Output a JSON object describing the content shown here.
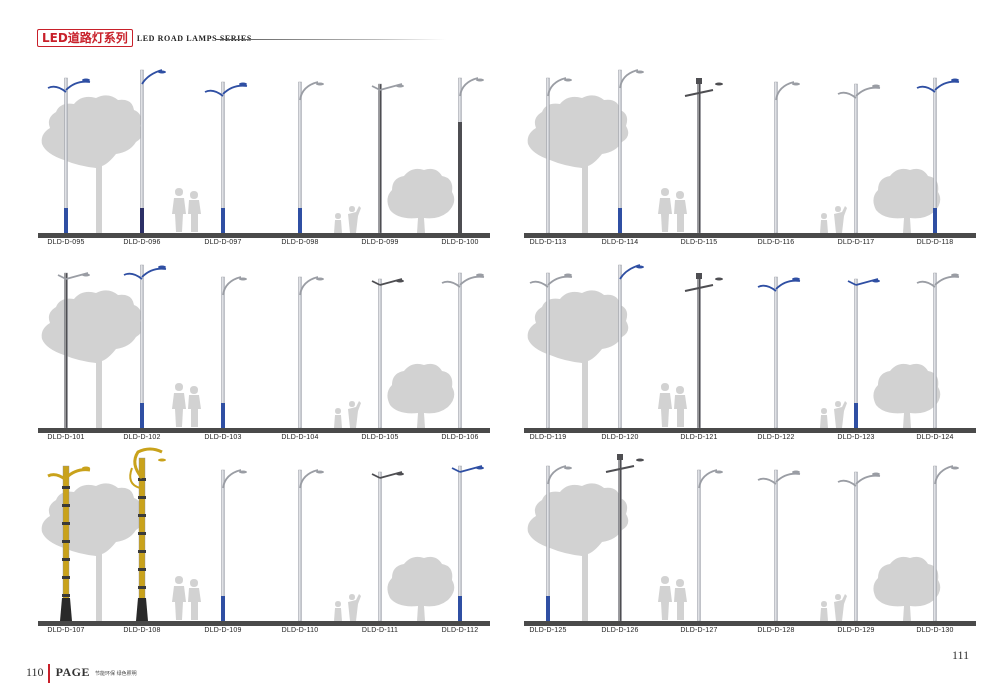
{
  "header": {
    "brand": "LED道路灯系列",
    "series": "LED ROAD LAMPS SERIES"
  },
  "footer": {
    "page_left": "110",
    "page_word": "PAGE",
    "tagline": "节能环保 绿色照明",
    "page_right": "111"
  },
  "colors": {
    "brand_red": "#c8202a",
    "pole_silver": "#c9ccd2",
    "pole_blue": "#2f4fa3",
    "pole_dark": "#4e4e52",
    "pole_gold": "#c9a21b",
    "background_silhouette": "#d2d2d2",
    "ground": "#4a4a4a"
  },
  "panels": [
    {
      "lamps": [
        {
          "label": "DLD-D-095",
          "style": "blue-base",
          "arm": "double-blue"
        },
        {
          "label": "DLD-D-096",
          "style": "dark-base",
          "arm": "blue-hook"
        },
        {
          "label": "DLD-D-097",
          "style": "blue-base",
          "arm": "double-blue"
        },
        {
          "label": "DLD-D-098",
          "style": "blue-base",
          "arm": "silver-curve"
        },
        {
          "label": "DLD-D-099",
          "style": "dark-full",
          "arm": "silver-flat"
        },
        {
          "label": "DLD-D-100",
          "style": "dark-upper",
          "arm": "silver-curve"
        }
      ]
    },
    {
      "lamps": [
        {
          "label": "DLD-D-113",
          "style": "silver",
          "arm": "silver-curve"
        },
        {
          "label": "DLD-D-114",
          "style": "blue-base",
          "arm": "silver-curve"
        },
        {
          "label": "DLD-D-115",
          "style": "dark-full",
          "arm": "dark-cross"
        },
        {
          "label": "DLD-D-116",
          "style": "silver",
          "arm": "silver-curve"
        },
        {
          "label": "DLD-D-117",
          "style": "silver",
          "arm": "double-silver"
        },
        {
          "label": "DLD-D-118",
          "style": "blue-base",
          "arm": "double-blue"
        }
      ]
    },
    {
      "lamps": [
        {
          "label": "DLD-D-101",
          "style": "dark-full",
          "arm": "silver-flat"
        },
        {
          "label": "DLD-D-102",
          "style": "blue-base",
          "arm": "double-blue"
        },
        {
          "label": "DLD-D-103",
          "style": "blue-base",
          "arm": "silver-curve"
        },
        {
          "label": "DLD-D-104",
          "style": "silver",
          "arm": "silver-curve"
        },
        {
          "label": "DLD-D-105",
          "style": "silver",
          "arm": "dark-flat"
        },
        {
          "label": "DLD-D-106",
          "style": "silver",
          "arm": "double-silver"
        }
      ]
    },
    {
      "lamps": [
        {
          "label": "DLD-D-119",
          "style": "silver",
          "arm": "double-silver"
        },
        {
          "label": "DLD-D-120",
          "style": "silver",
          "arm": "blue-hook"
        },
        {
          "label": "DLD-D-121",
          "style": "dark-full",
          "arm": "dark-cross"
        },
        {
          "label": "DLD-D-122",
          "style": "silver",
          "arm": "double-blue"
        },
        {
          "label": "DLD-D-123",
          "style": "blue-base",
          "arm": "blue-flat"
        },
        {
          "label": "DLD-D-124",
          "style": "silver",
          "arm": "double-silver"
        }
      ]
    },
    {
      "lamps": [
        {
          "label": "DLD-D-107",
          "style": "gold",
          "arm": "gold-double"
        },
        {
          "label": "DLD-D-108",
          "style": "gold",
          "arm": "gold-wing"
        },
        {
          "label": "DLD-D-109",
          "style": "blue-base",
          "arm": "silver-curve"
        },
        {
          "label": "DLD-D-110",
          "style": "silver",
          "arm": "silver-curve"
        },
        {
          "label": "DLD-D-111",
          "style": "silver",
          "arm": "dark-flat"
        },
        {
          "label": "DLD-D-112",
          "style": "blue-base",
          "arm": "blue-flat"
        }
      ]
    },
    {
      "lamps": [
        {
          "label": "DLD-D-125",
          "style": "blue-base",
          "arm": "silver-curve"
        },
        {
          "label": "DLD-D-126",
          "style": "dark-full",
          "arm": "dark-cross"
        },
        {
          "label": "DLD-D-127",
          "style": "silver",
          "arm": "silver-curve"
        },
        {
          "label": "DLD-D-128",
          "style": "silver",
          "arm": "double-silver"
        },
        {
          "label": "DLD-D-129",
          "style": "silver",
          "arm": "double-silver"
        },
        {
          "label": "DLD-D-130",
          "style": "silver",
          "arm": "silver-curve"
        }
      ]
    }
  ]
}
